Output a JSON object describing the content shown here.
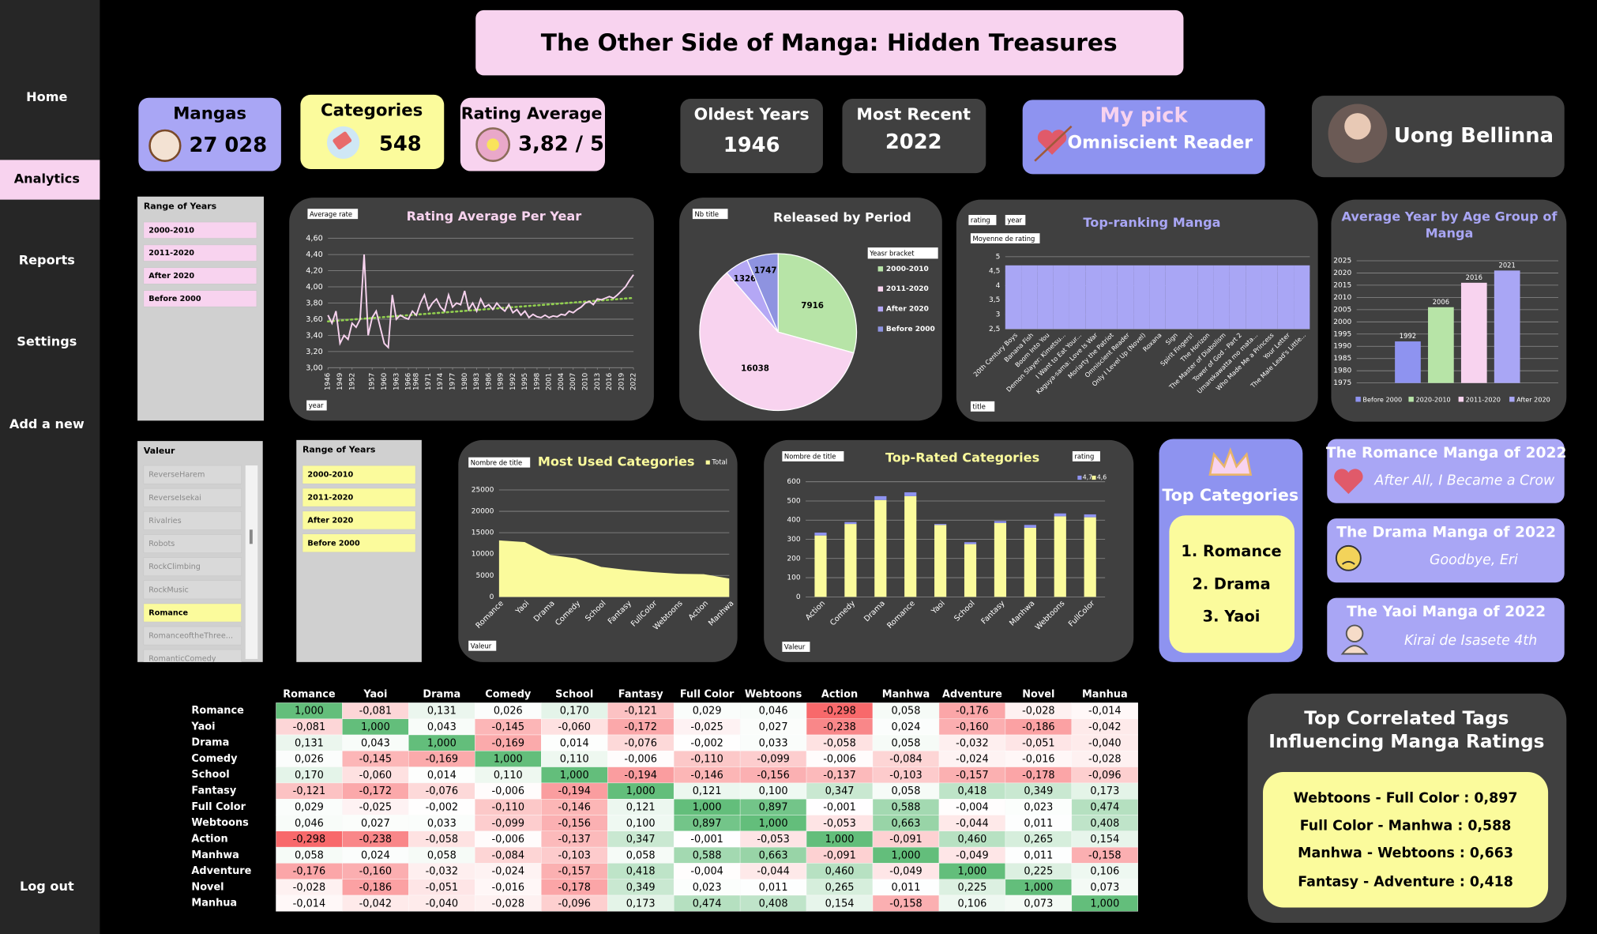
{
  "nav": {
    "items": [
      "Home",
      "Analytics",
      "Reports",
      "Settings",
      "Add a new"
    ],
    "active": 1,
    "footer": "Log out"
  },
  "header": {
    "title": "The Other Side of Manga: Hidden Treasures"
  },
  "kpis": [
    {
      "label": "Mangas",
      "value": "27 028"
    },
    {
      "label": "Categories",
      "value": "548"
    },
    {
      "label": "Rating Average",
      "value": "3,82 / 5"
    },
    {
      "label": "Oldest Years",
      "value": "1946"
    },
    {
      "label": "Most Recent",
      "value": "2022"
    },
    {
      "label": "My pick",
      "value": "Omniscient Reader"
    }
  ],
  "profile": {
    "name": "Uong Bellinna"
  },
  "slicers": [
    {
      "title": "Range of Years",
      "items": [
        "2000-2010",
        "2011-2020",
        "After 2020",
        "Before 2000"
      ]
    },
    {
      "title": "Valeur",
      "items": [
        "ReverseHarem",
        "ReverseIsekai",
        "Rivalries",
        "Robots",
        "RockClimbing",
        "RockMusic",
        "Romance",
        "RomanceoftheThree...",
        "RomanticComedy"
      ],
      "selected": 6
    },
    {
      "title": "Range of Years",
      "items": [
        "2000-2010",
        "2011-2020",
        "After 2020",
        "Before 2000"
      ]
    }
  ],
  "top_categories": {
    "title": "Top Categories",
    "items": [
      "1. Romance",
      "2. Drama",
      "3. Yaoi"
    ]
  },
  "manga_of_year": [
    {
      "title": "The Romance Manga of 2022",
      "name": "After All, I Became a Crow"
    },
    {
      "title": "The Drama Manga of 2022",
      "name": "Goodbye, Eri"
    },
    {
      "title": "The Yaoi Manga of 2022",
      "name": "Kirai de Isasete 4th"
    }
  ],
  "correlated": {
    "title": "Top Correlated Tags Influencing Manga Ratings",
    "items": [
      "Webtoons - Full Color : 0,897",
      "Full Color - Manhwa : 0,588",
      "Manhwa - Webtoons : 0,663",
      "Fantasy - Adventure : 0,418"
    ]
  },
  "chart_data": [
    {
      "type": "line",
      "title": "Rating Average Per Year",
      "field_labels": [
        "Average rate",
        "year"
      ],
      "x": [
        1946,
        1947,
        1948,
        1949,
        1950,
        1951,
        1952,
        1953,
        1954,
        1955,
        1956,
        1957,
        1958,
        1959,
        1960,
        1961,
        1962,
        1963,
        1964,
        1965,
        1966,
        1967,
        1968,
        1969,
        1970,
        1971,
        1972,
        1973,
        1974,
        1975,
        1976,
        1977,
        1978,
        1979,
        1980,
        1981,
        1982,
        1983,
        1984,
        1985,
        1986,
        1987,
        1988,
        1989,
        1990,
        1991,
        1992,
        1993,
        1994,
        1995,
        1996,
        1997,
        1998,
        1999,
        2000,
        2001,
        2002,
        2003,
        2004,
        2005,
        2006,
        2007,
        2008,
        2009,
        2010,
        2011,
        2012,
        2013,
        2014,
        2015,
        2016,
        2017,
        2018,
        2019,
        2020,
        2021,
        2022
      ],
      "values": [
        3.65,
        3.55,
        3.7,
        3.3,
        3.4,
        3.35,
        3.55,
        3.5,
        3.6,
        4.4,
        3.4,
        3.62,
        3.7,
        3.5,
        3.3,
        3.25,
        3.9,
        3.6,
        3.65,
        3.62,
        3.6,
        3.7,
        3.65,
        3.8,
        3.9,
        3.72,
        3.8,
        3.85,
        3.75,
        3.7,
        3.9,
        3.75,
        3.8,
        3.78,
        3.95,
        3.72,
        3.8,
        3.7,
        3.85,
        3.75,
        3.78,
        3.72,
        3.8,
        3.74,
        3.7,
        3.78,
        3.68,
        3.72,
        3.65,
        3.7,
        3.62,
        3.66,
        3.63,
        3.62,
        3.65,
        3.62,
        3.64,
        3.63,
        3.66,
        3.65,
        3.7,
        3.68,
        3.72,
        3.75,
        3.8,
        3.82,
        3.78,
        3.85,
        3.84,
        3.86,
        3.88,
        3.86,
        3.9,
        3.95,
        4.0,
        4.08,
        4.15
      ],
      "color": "#f8d3ef",
      "trendline": true,
      "trend_color": "#92d050",
      "xlim": [
        1946,
        2022
      ],
      "xticks": [
        1946,
        1949,
        1952,
        1957,
        1960,
        1963,
        1966,
        1968,
        1971,
        1974,
        1977,
        1980,
        1983,
        1986,
        1989,
        1992,
        1995,
        1998,
        2001,
        2004,
        2007,
        2010,
        2013,
        2016,
        2019,
        2022
      ],
      "ylim": [
        3.0,
        4.6
      ],
      "yticks": [
        {
          "value": 3.0,
          "label": "3,00"
        },
        {
          "value": 3.2,
          "label": "3,20"
        },
        {
          "value": 3.4,
          "label": "3,40"
        },
        {
          "value": 3.6,
          "label": "3,60"
        },
        {
          "value": 3.8,
          "label": "3,80"
        },
        {
          "value": 4.0,
          "label": "4,00"
        },
        {
          "value": 4.2,
          "label": "4,20"
        },
        {
          "value": 4.4,
          "label": "4,40"
        },
        {
          "value": 4.6,
          "label": "4,60"
        }
      ],
      "grid": true
    },
    {
      "type": "pie",
      "title": "Released by Period",
      "field_labels": [
        "Nb title"
      ],
      "legend_title": "Yeasr bracket",
      "categories": [
        "2000-2010",
        "2011-2020",
        "After 2020",
        "Before 2000"
      ],
      "values": [
        7916,
        16038,
        1326,
        1747
      ],
      "colors": [
        "#b7e4a7",
        "#f8d3ef",
        "#b4a7f5",
        "#8e93e0"
      ],
      "legend": "right"
    },
    {
      "type": "bar",
      "title": "Top-ranking Manga",
      "field_labels": [
        "rating",
        "year",
        "Moyenne de rating",
        "title"
      ],
      "categories": [
        "20th Century Boys",
        "Banana Fish",
        "Boom Into You",
        "Demon Slayer: Kimetsu...",
        "I Want to Eat Your...",
        "Kaguya-sama: Love Is War",
        "Moriarty the Patriot",
        "Omniscient Reader",
        "Only I Level Up (Novel)",
        "Roxana",
        "Sign",
        "Spirit Fingers!",
        "The Horizon",
        "The Master of Diabolism",
        "Tower of God - Part 2",
        "Umarekawatta mo mata...",
        "Who Made Me a Princess",
        "Your Letter",
        "The Male Lead's Little..."
      ],
      "values": [
        4.7,
        4.7,
        4.7,
        4.7,
        4.7,
        4.7,
        4.7,
        4.7,
        4.7,
        4.7,
        4.7,
        4.7,
        4.7,
        4.7,
        4.7,
        4.7,
        4.7,
        4.7,
        4.7
      ],
      "color": "#a9a6f5",
      "ylim": [
        2.5,
        5
      ],
      "yticks": [
        {
          "value": 2.5,
          "label": "2,5"
        },
        3,
        {
          "value": 3.5,
          "label": "3,5"
        },
        4,
        {
          "value": 4.5,
          "label": "4,5"
        },
        5
      ],
      "grid": true
    },
    {
      "type": "bar",
      "title": "Average Year by Age Group of Manga",
      "categories": [
        "Before 2000",
        "2020-2010",
        "2011-2020",
        "After 2020"
      ],
      "values": [
        1992,
        2006,
        2016,
        2021
      ],
      "colors": [
        "#8e93f0",
        "#b7e4a7",
        "#f8d3ef",
        "#a9a6f5"
      ],
      "data_labels": true,
      "legend": "bottom",
      "ylim": [
        1975,
        2025
      ],
      "yticks": [
        1975,
        1980,
        1985,
        1990,
        1995,
        2000,
        2005,
        2010,
        2015,
        2020,
        2025
      ],
      "grid": true
    },
    {
      "type": "area",
      "title": "Most Used Categories",
      "field_labels": [
        "Nombre de title",
        "Valeur"
      ],
      "categories": [
        "Romance",
        "Yaoi",
        "Drama",
        "Comedy",
        "School",
        "Fantasy",
        "FullColor",
        "Webtoons",
        "Action",
        "Manhwa"
      ],
      "series": [
        {
          "name": "Total",
          "color": "#fbfb9c",
          "values": [
            13200,
            12800,
            9800,
            9000,
            7000,
            6300,
            5800,
            5400,
            5300,
            4300
          ]
        }
      ],
      "ylim": [
        0,
        25000
      ],
      "yticks": [
        0,
        5000,
        10000,
        15000,
        20000,
        25000
      ],
      "grid": true,
      "legend": "top-right"
    },
    {
      "type": "bar",
      "title": "Top-Rated Categories",
      "field_labels": [
        "Nombre de title",
        "rating",
        "Valeur"
      ],
      "stacked": true,
      "categories": [
        "Action",
        "Comedy",
        "Drama",
        "Romance",
        "Yaoi",
        "School",
        "Fantasy",
        "Manhwa",
        "Webtoons",
        "FullColor"
      ],
      "series": [
        {
          "name": "4,6",
          "color": "#fbfb9c",
          "values": [
            320,
            380,
            505,
            525,
            375,
            275,
            385,
            360,
            420,
            415
          ]
        },
        {
          "name": "4,7",
          "color": "#8e93f0",
          "values": [
            15,
            10,
            20,
            20,
            5,
            10,
            10,
            15,
            15,
            15
          ]
        }
      ],
      "ylim": [
        0,
        600
      ],
      "yticks": [
        0,
        100,
        200,
        300,
        400,
        500,
        600
      ],
      "grid": true,
      "legend": "top-right"
    },
    {
      "type": "heatmap",
      "columns": [
        "Romance",
        "Yaoi",
        "Drama",
        "Comedy",
        "School",
        "Fantasy",
        "Full Color",
        "Webtoons",
        "Action",
        "Manhwa",
        "Adventure",
        "Novel",
        "Manhua"
      ],
      "rows": [
        "Romance",
        "Yaoi",
        "Drama",
        "Comedy",
        "School",
        "Fantasy",
        "Full Color",
        "Webtoons",
        "Action",
        "Manhwa",
        "Adventure",
        "Novel",
        "Manhua"
      ],
      "high_color": "#63be7b",
      "low_color": "#f8696b",
      "values": [
        [
          1,
          -0.081,
          0.131,
          0.026,
          0.17,
          -0.121,
          0.029,
          0.046,
          -0.298,
          0.058,
          -0.176,
          -0.028,
          -0.014
        ],
        [
          -0.081,
          1,
          0.043,
          -0.145,
          -0.06,
          -0.172,
          -0.025,
          0.027,
          -0.238,
          0.024,
          -0.16,
          -0.186,
          -0.042
        ],
        [
          0.131,
          0.043,
          1,
          -0.169,
          0.014,
          -0.076,
          -0.002,
          0.033,
          -0.058,
          0.058,
          -0.032,
          -0.051,
          -0.04
        ],
        [
          0.026,
          -0.145,
          -0.169,
          1,
          0.11,
          -0.006,
          -0.11,
          -0.099,
          -0.006,
          -0.084,
          -0.024,
          -0.016,
          -0.028
        ],
        [
          0.17,
          -0.06,
          0.014,
          0.11,
          1,
          -0.194,
          -0.146,
          -0.156,
          -0.137,
          -0.103,
          -0.157,
          -0.178,
          -0.096
        ],
        [
          -0.121,
          -0.172,
          -0.076,
          -0.006,
          -0.194,
          1,
          0.121,
          0.1,
          0.347,
          0.058,
          0.418,
          0.349,
          0.173
        ],
        [
          0.029,
          -0.025,
          -0.002,
          -0.11,
          -0.146,
          0.121,
          1,
          0.897,
          -0.001,
          0.588,
          -0.004,
          0.023,
          0.474
        ],
        [
          0.046,
          0.027,
          0.033,
          -0.099,
          -0.156,
          0.1,
          0.897,
          1,
          -0.053,
          0.663,
          -0.044,
          0.011,
          0.408
        ],
        [
          -0.298,
          -0.238,
          -0.058,
          -0.006,
          -0.137,
          0.347,
          -0.001,
          -0.053,
          1,
          -0.091,
          0.46,
          0.265,
          0.154
        ],
        [
          0.058,
          0.024,
          0.058,
          -0.084,
          -0.103,
          0.058,
          0.588,
          0.663,
          -0.091,
          1,
          -0.049,
          0.011,
          -0.158
        ],
        [
          -0.176,
          -0.16,
          -0.032,
          -0.024,
          -0.157,
          0.418,
          -0.004,
          -0.044,
          0.46,
          -0.049,
          1,
          0.225,
          0.106
        ],
        [
          -0.028,
          -0.186,
          -0.051,
          -0.016,
          -0.178,
          0.349,
          0.023,
          0.011,
          0.265,
          0.011,
          0.225,
          1,
          0.073
        ],
        [
          -0.014,
          -0.042,
          -0.04,
          -0.028,
          -0.096,
          0.173,
          0.474,
          0.408,
          0.154,
          -0.158,
          0.106,
          0.073,
          1
        ]
      ],
      "value_labels": [
        [
          "1,000",
          "-0,081",
          "0,131",
          "0,026",
          "0,170",
          "-0,121",
          "0,029",
          "0,046",
          "-0,298",
          "0,058",
          "-0,176",
          "-0,028",
          "-0,014"
        ],
        [
          "-0,081",
          "1,000",
          "0,043",
          "-0,145",
          "-0,060",
          "-0,172",
          "-0,025",
          "0,027",
          "-0,238",
          "0,024",
          "-0,160",
          "-0,186",
          "-0,042"
        ],
        [
          "0,131",
          "0,043",
          "1,000",
          "-0,169",
          "0,014",
          "-0,076",
          "-0,002",
          "0,033",
          "-0,058",
          "0,058",
          "-0,032",
          "-0,051",
          "-0,040"
        ],
        [
          "0,026",
          "-0,145",
          "-0,169",
          "1,000",
          "0,110",
          "-0,006",
          "-0,110",
          "-0,099",
          "-0,006",
          "-0,084",
          "-0,024",
          "-0,016",
          "-0,028"
        ],
        [
          "0,170",
          "-0,060",
          "0,014",
          "0,110",
          "1,000",
          "-0,194",
          "-0,146",
          "-0,156",
          "-0,137",
          "-0,103",
          "-0,157",
          "-0,178",
          "-0,096"
        ],
        [
          "-0,121",
          "-0,172",
          "-0,076",
          "-0,006",
          "-0,194",
          "1,000",
          "0,121",
          "0,100",
          "0,347",
          "0,058",
          "0,418",
          "0,349",
          "0,173"
        ],
        [
          "0,029",
          "-0,025",
          "-0,002",
          "-0,110",
          "-0,146",
          "0,121",
          "1,000",
          "0,897",
          "-0,001",
          "0,588",
          "-0,004",
          "0,023",
          "0,474"
        ],
        [
          "0,046",
          "0,027",
          "0,033",
          "-0,099",
          "-0,156",
          "0,100",
          "0,897",
          "1,000",
          "-0,053",
          "0,663",
          "-0,044",
          "0,011",
          "0,408"
        ],
        [
          "-0,298",
          "-0,238",
          "-0,058",
          "-0,006",
          "-0,137",
          "0,347",
          "-0,001",
          "-0,053",
          "1,000",
          "-0,091",
          "0,460",
          "0,265",
          "0,154"
        ],
        [
          "0,058",
          "0,024",
          "0,058",
          "-0,084",
          "-0,103",
          "0,058",
          "0,588",
          "0,663",
          "-0,091",
          "1,000",
          "-0,049",
          "0,011",
          "-0,158"
        ],
        [
          "-0,176",
          "-0,160",
          "-0,032",
          "-0,024",
          "-0,157",
          "0,418",
          "-0,004",
          "-0,044",
          "0,460",
          "-0,049",
          "1,000",
          "0,225",
          "0,106"
        ],
        [
          "-0,028",
          "-0,186",
          "-0,051",
          "-0,016",
          "-0,178",
          "0,349",
          "0,023",
          "0,011",
          "0,265",
          "0,011",
          "0,225",
          "1,000",
          "0,073"
        ],
        [
          "-0,014",
          "-0,042",
          "-0,040",
          "-0,028",
          "-0,096",
          "0,173",
          "0,474",
          "0,408",
          "0,154",
          "-0,158",
          "0,106",
          "0,073",
          "1,000"
        ]
      ]
    }
  ]
}
